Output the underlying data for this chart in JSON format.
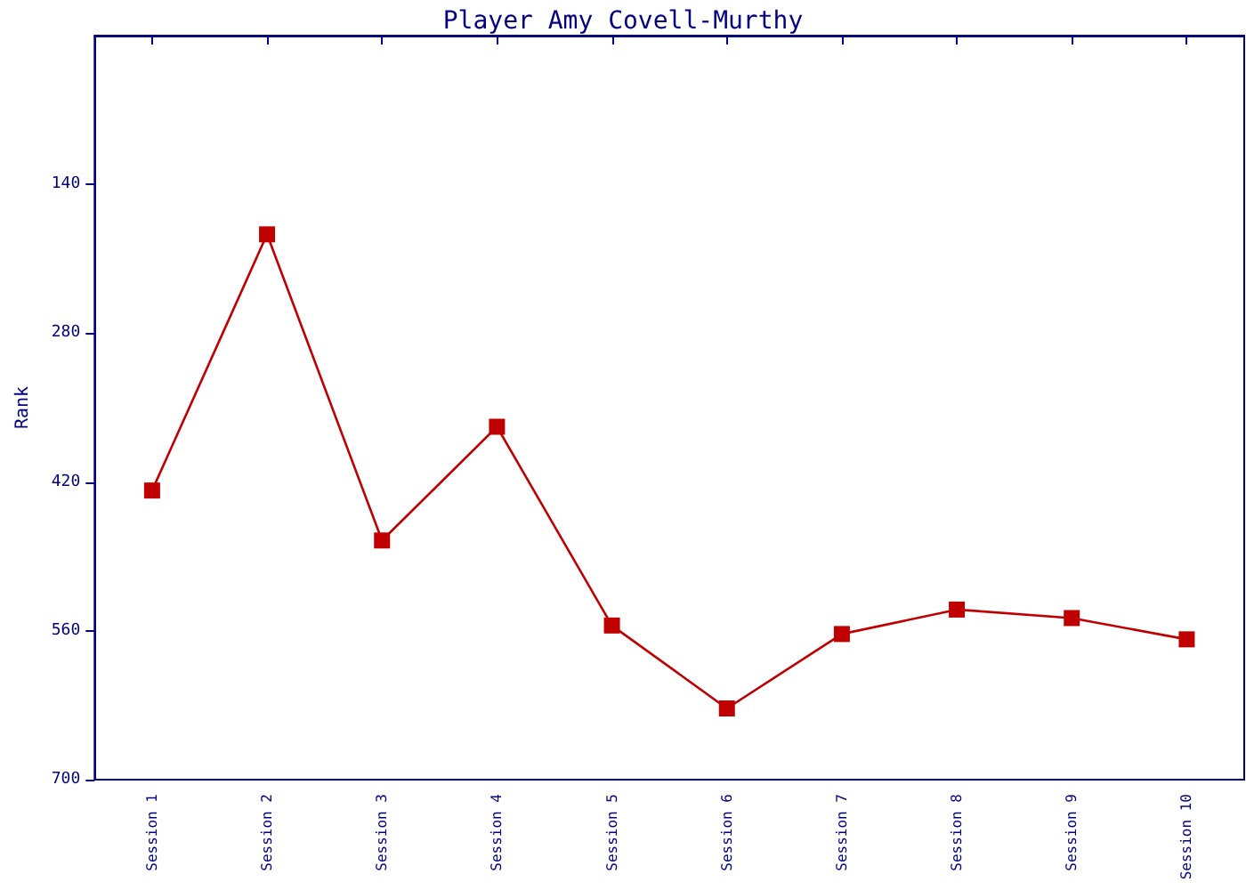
{
  "chart_data": {
    "type": "line",
    "title": "Player Amy Covell-Murthy",
    "ylabel": "Rank",
    "categories": [
      "Session 1",
      "Session 2",
      "Session 3",
      "Session 4",
      "Session 5",
      "Session 6",
      "Session 7",
      "Session 8",
      "Session 9",
      "Session 10"
    ],
    "series": [
      {
        "color": "#c00000",
        "values": [
          428,
          187,
          475,
          368,
          555,
          633,
          563,
          540,
          548,
          568
        ]
      }
    ],
    "ylim": [
      700,
      0
    ],
    "yticks": [
      140,
      280,
      420,
      560,
      700
    ],
    "marker": "square",
    "line_style": "solid"
  }
}
